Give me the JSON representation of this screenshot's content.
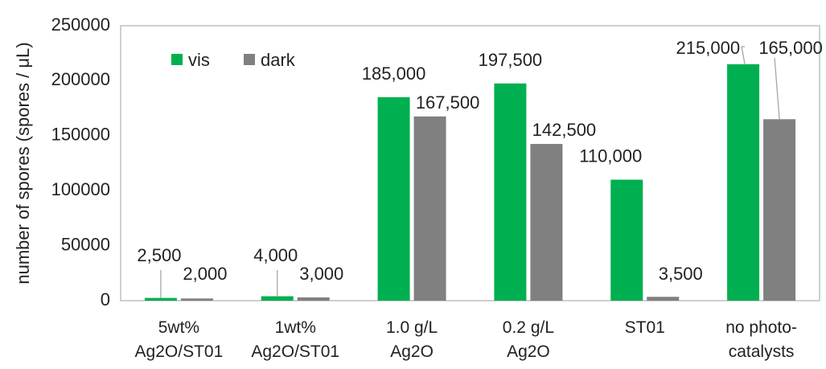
{
  "chart_data": {
    "type": "bar",
    "title": "",
    "xlabel": "",
    "ylabel": "number of spores (spores / μL)",
    "ylim": [
      0,
      250000
    ],
    "yticks": [
      0,
      50000,
      100000,
      150000,
      200000,
      250000
    ],
    "grid": false,
    "legend_position": "top-left",
    "categories": [
      [
        "5wt%",
        "Ag2O/ST01"
      ],
      [
        "1wt%",
        "Ag2O/ST01"
      ],
      [
        "1.0 g/L",
        "Ag2O"
      ],
      [
        "0.2 g/L",
        "Ag2O"
      ],
      [
        "ST01"
      ],
      [
        "no photo-",
        "catalysts"
      ]
    ],
    "series": [
      {
        "name": "vis",
        "color": "#00b050",
        "values": [
          2500,
          4000,
          185000,
          197500,
          110000,
          215000
        ],
        "labels": [
          "2,500",
          "4,000",
          "185,000",
          "197,500",
          "110,000",
          "215,000"
        ]
      },
      {
        "name": "dark",
        "color": "#808080",
        "values": [
          2000,
          3000,
          167500,
          142500,
          3500,
          165000
        ],
        "labels": [
          "2,000",
          "3,000",
          "167,500",
          "142,500",
          "3,500",
          "165,000"
        ]
      }
    ]
  }
}
